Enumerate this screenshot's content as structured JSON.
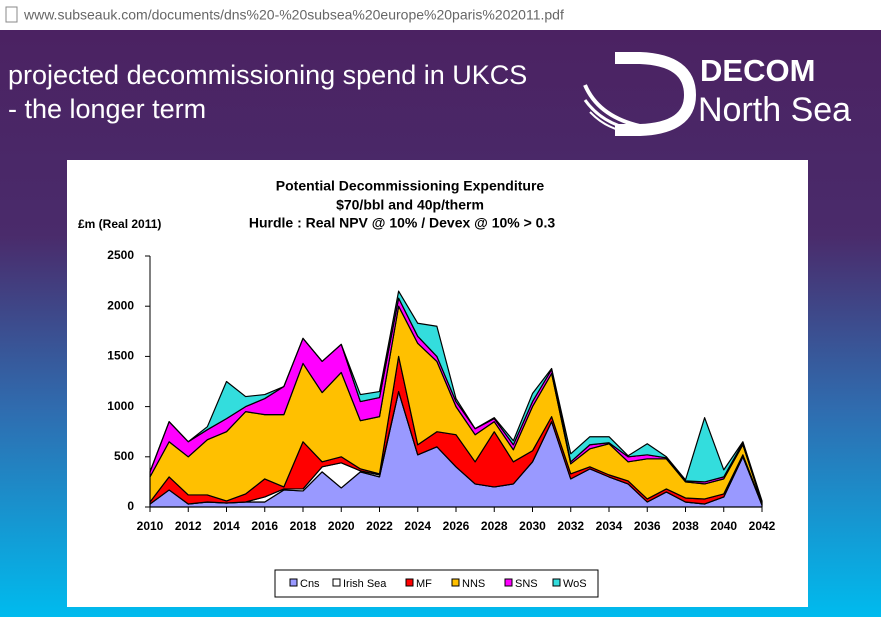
{
  "url": "www.subseauk.com/documents/dns%20-%20subsea%20europe%20paris%202011.pdf",
  "slide": {
    "title": [
      "projected decommissioning spend in UKCS",
      "- the longer term"
    ],
    "logo": [
      "DECOM",
      "North Sea"
    ]
  },
  "chart_data": {
    "type": "stacked-area",
    "title": [
      "Potential Decommissioning Expenditure",
      "$70/bbl and 40p/therm",
      "Hurdle : Real NPV @ 10% / Devex @ 10% > 0.3"
    ],
    "ylabel": "£m (Real 2011)",
    "x": [
      2010,
      2011,
      2012,
      2013,
      2014,
      2015,
      2016,
      2017,
      2018,
      2019,
      2020,
      2021,
      2022,
      2023,
      2024,
      2025,
      2026,
      2027,
      2028,
      2029,
      2030,
      2031,
      2032,
      2033,
      2034,
      2035,
      2036,
      2037,
      2038,
      2039,
      2040,
      2041,
      2042
    ],
    "xlim": [
      2010,
      2042
    ],
    "xticks": [
      2010,
      2012,
      2014,
      2016,
      2018,
      2020,
      2022,
      2024,
      2026,
      2028,
      2030,
      2032,
      2034,
      2036,
      2038,
      2040,
      2042
    ],
    "ylim": [
      0,
      2500
    ],
    "yticks": [
      0,
      500,
      1000,
      1500,
      2000,
      2500
    ],
    "legend": "bottom",
    "series": [
      {
        "name": "Cns",
        "color": "#9999ff",
        "values": [
          30,
          170,
          30,
          50,
          40,
          50,
          50,
          170,
          160,
          350,
          190,
          350,
          300,
          1150,
          520,
          600,
          400,
          230,
          200,
          230,
          450,
          850,
          280,
          380,
          300,
          230,
          50,
          150,
          50,
          30,
          100,
          500,
          20
        ]
      },
      {
        "name": "Irish Sea",
        "color": "#ffffff",
        "values": [
          0,
          0,
          0,
          0,
          0,
          0,
          50,
          10,
          20,
          50,
          250,
          10,
          20,
          0,
          0,
          0,
          0,
          0,
          0,
          0,
          0,
          0,
          0,
          0,
          0,
          0,
          0,
          0,
          0,
          0,
          0,
          0,
          0
        ]
      },
      {
        "name": "MF",
        "color": "#ff0000",
        "values": [
          20,
          130,
          90,
          70,
          20,
          80,
          180,
          20,
          470,
          50,
          60,
          20,
          10,
          350,
          100,
          150,
          320,
          220,
          550,
          220,
          110,
          50,
          50,
          20,
          20,
          30,
          30,
          30,
          40,
          50,
          30,
          20,
          10
        ]
      },
      {
        "name": "NNS",
        "color": "#ffc000",
        "values": [
          250,
          350,
          380,
          550,
          690,
          820,
          640,
          720,
          780,
          690,
          840,
          480,
          570,
          500,
          1010,
          700,
          280,
          270,
          100,
          120,
          440,
          430,
          100,
          180,
          310,
          190,
          400,
          300,
          160,
          150,
          150,
          100,
          10
        ]
      },
      {
        "name": "SNS",
        "color": "#ff00ff",
        "values": [
          50,
          200,
          150,
          100,
          130,
          50,
          160,
          280,
          250,
          310,
          280,
          190,
          190,
          80,
          70,
          50,
          50,
          60,
          30,
          50,
          50,
          40,
          20,
          40,
          10,
          50,
          40,
          10,
          10,
          20,
          20,
          20,
          10
        ]
      },
      {
        "name": "WoS",
        "color": "#33dddd",
        "values": [
          0,
          0,
          0,
          30,
          370,
          100,
          40,
          0,
          0,
          0,
          0,
          70,
          60,
          70,
          130,
          300,
          30,
          0,
          10,
          40,
          80,
          10,
          80,
          80,
          60,
          10,
          110,
          10,
          10,
          640,
          70,
          10,
          10
        ]
      }
    ]
  }
}
